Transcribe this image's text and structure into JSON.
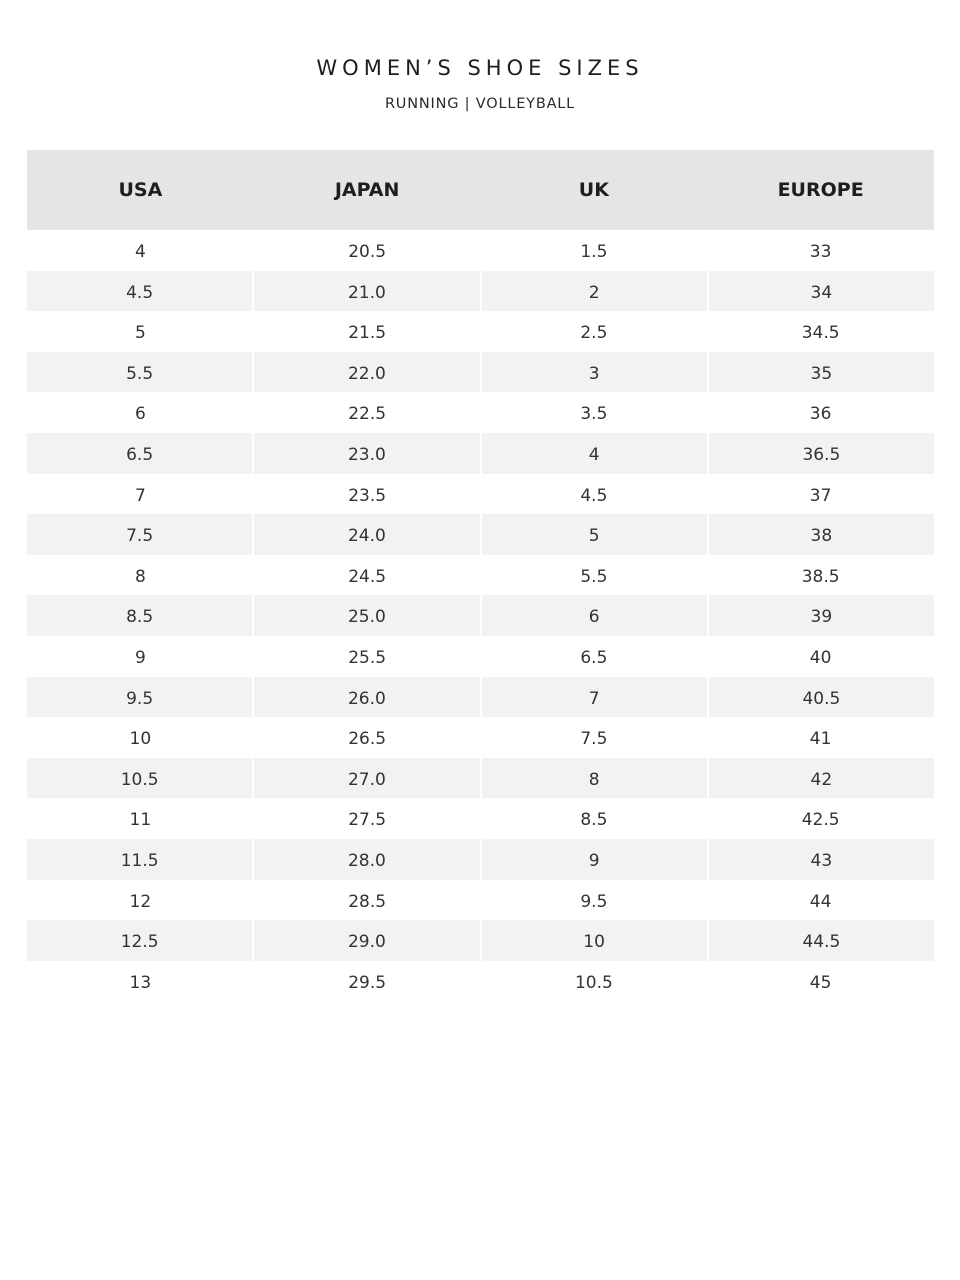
{
  "title": "WOMEN’S SHOE SIZES",
  "subtitle": "RUNNING | VOLLEYBALL",
  "colors": {
    "header_bg": "#e5e5e5",
    "stripe_bg": "#f2f2f2"
  },
  "columns": [
    "USA",
    "JAPAN",
    "UK",
    "EUROPE"
  ],
  "rows": [
    [
      "4",
      "20.5",
      "1.5",
      "33"
    ],
    [
      "4.5",
      "21.0",
      "2",
      "34"
    ],
    [
      "5",
      "21.5",
      "2.5",
      "34.5"
    ],
    [
      "5.5",
      "22.0",
      "3",
      "35"
    ],
    [
      "6",
      "22.5",
      "3.5",
      "36"
    ],
    [
      "6.5",
      "23.0",
      "4",
      "36.5"
    ],
    [
      "7",
      "23.5",
      "4.5",
      "37"
    ],
    [
      "7.5",
      "24.0",
      "5",
      "38"
    ],
    [
      "8",
      "24.5",
      "5.5",
      "38.5"
    ],
    [
      "8.5",
      "25.0",
      "6",
      "39"
    ],
    [
      "9",
      "25.5",
      "6.5",
      "40"
    ],
    [
      "9.5",
      "26.0",
      "7",
      "40.5"
    ],
    [
      "10",
      "26.5",
      "7.5",
      "41"
    ],
    [
      "10.5",
      "27.0",
      "8",
      "42"
    ],
    [
      "11",
      "27.5",
      "8.5",
      "42.5"
    ],
    [
      "11.5",
      "28.0",
      "9",
      "43"
    ],
    [
      "12",
      "28.5",
      "9.5",
      "44"
    ],
    [
      "12.5",
      "29.0",
      "10",
      "44.5"
    ],
    [
      "13",
      "29.5",
      "10.5",
      "45"
    ]
  ]
}
